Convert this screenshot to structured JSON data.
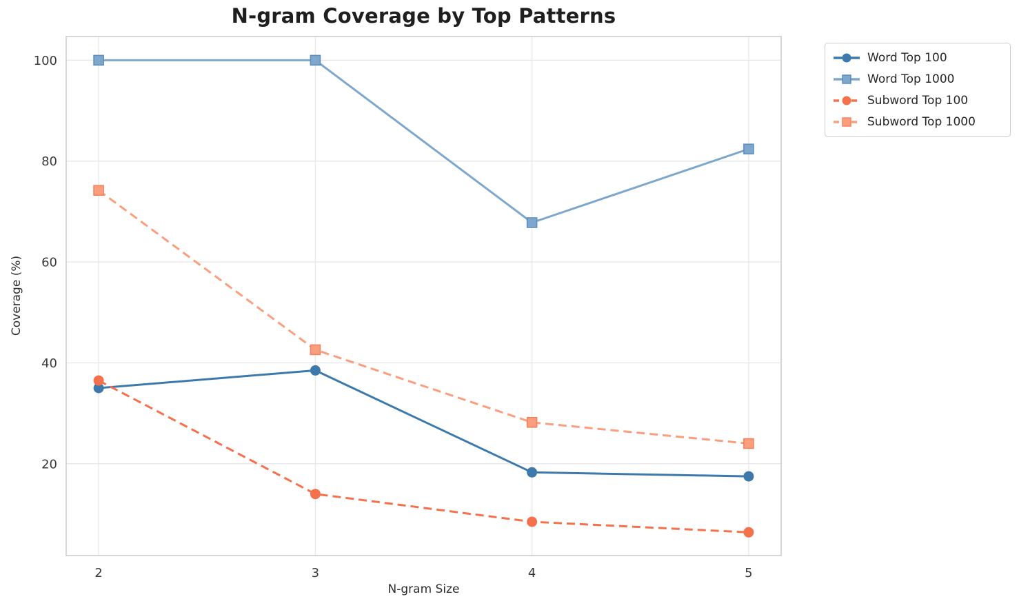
{
  "chart_data": {
    "type": "line",
    "title": "N-gram Coverage by Top Patterns",
    "xlabel": "N-gram Size",
    "ylabel": "Coverage (%)",
    "x": [
      2,
      3,
      4,
      5
    ],
    "xticks": [
      2,
      3,
      4,
      5
    ],
    "yticks": [
      20,
      40,
      60,
      80,
      100
    ],
    "xlim": [
      1.85,
      5.15
    ],
    "ylim": [
      1.8,
      104.7
    ],
    "grid": true,
    "legend_position": "outside-upper-right",
    "series": [
      {
        "name": "Word Top 100",
        "values": [
          35.0,
          38.5,
          18.3,
          17.5
        ],
        "color": "#3D7AAB",
        "edge": "#3D7AAB",
        "linestyle": "solid",
        "marker": "circle"
      },
      {
        "name": "Word Top 1000",
        "values": [
          100.0,
          100.0,
          67.8,
          82.4
        ],
        "color": "#7FA7CC",
        "edge": "#5C8FBF",
        "linestyle": "solid",
        "marker": "square"
      },
      {
        "name": "Subword Top 100",
        "values": [
          36.5,
          14.0,
          8.5,
          6.4
        ],
        "color": "#F4714B",
        "edge": "#F4714B",
        "linestyle": "dashed",
        "marker": "circle"
      },
      {
        "name": "Subword Top 1000",
        "values": [
          74.2,
          42.6,
          28.2,
          24.0
        ],
        "color": "#FA9E7D",
        "edge": "#F5825E",
        "linestyle": "dashed",
        "marker": "square"
      }
    ],
    "style": {
      "grid_color": "#E7E7E7",
      "spine_color": "#C6C6C6",
      "tick_text_color": "#3A3A3A",
      "line_width": 3,
      "dash_pattern": "12 7"
    }
  }
}
